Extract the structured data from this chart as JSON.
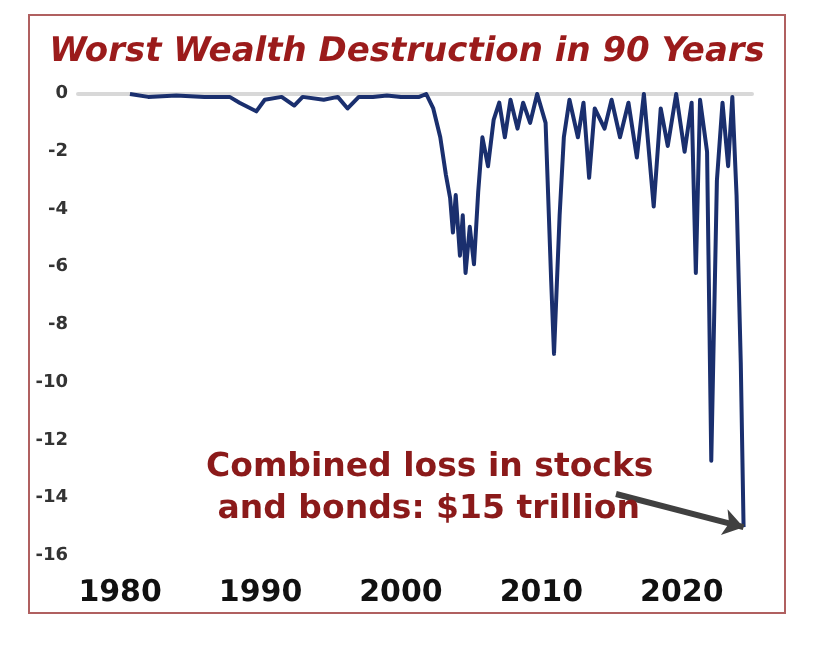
{
  "chart_data": {
    "type": "line",
    "title": "Worst Wealth Destruction in 90 Years",
    "xlim": [
      1977,
      2025
    ],
    "xticks": [
      1980,
      1990,
      2000,
      2010,
      2020
    ],
    "ylim": [
      -16,
      0
    ],
    "yticks": [
      0,
      -2,
      -4,
      -6,
      -8,
      -10,
      -12,
      -14,
      -16
    ],
    "grid": false,
    "marker": "none",
    "line_style": "solid",
    "annotations": [
      {
        "text": "Combined loss in stocks and bonds: $15 trillion",
        "x": 2024.4,
        "y": -15
      }
    ],
    "series": [
      {
        "color": "#1a2f6e",
        "x": [
          1980.7,
          1982,
          1984,
          1986,
          1987.8,
          1988.5,
          1989.7,
          1990.3,
          1991.5,
          1992.4,
          1993,
          1994.5,
          1995.5,
          1996.2,
          1997,
          1998,
          1999,
          2000,
          2001.3,
          2001.8,
          2002.3,
          2002.8,
          2003.2,
          2003.5,
          2003.7,
          2003.9,
          2004.2,
          2004.4,
          2004.6,
          2004.9,
          2005.2,
          2005.5,
          2005.8,
          2006.2,
          2006.6,
          2007,
          2007.4,
          2007.8,
          2008.3,
          2008.7,
          2009.2,
          2009.7,
          2010.3,
          2010.7,
          2010.9,
          2011.3,
          2011.6,
          2012,
          2012.6,
          2013,
          2013.4,
          2013.8,
          2014.5,
          2015,
          2015.6,
          2016.2,
          2016.8,
          2017.3,
          2018,
          2018.5,
          2019,
          2019.6,
          2020.2,
          2020.7,
          2021,
          2021.3,
          2021.8,
          2022.1,
          2022.5,
          2022.9,
          2023.3,
          2023.6,
          2023.9,
          2024.2,
          2024.4
        ],
        "values": [
          0,
          -0.1,
          -0.05,
          -0.1,
          -0.1,
          -0.3,
          -0.6,
          -0.2,
          -0.1,
          -0.4,
          -0.1,
          -0.2,
          -0.1,
          -0.5,
          -0.1,
          -0.1,
          -0.05,
          -0.1,
          -0.1,
          0,
          -0.5,
          -1.5,
          -2.8,
          -3.6,
          -4.8,
          -3.5,
          -5.6,
          -4.2,
          -6.2,
          -4.6,
          -5.9,
          -3.4,
          -1.5,
          -2.5,
          -0.9,
          -0.3,
          -1.5,
          -0.2,
          -1.2,
          -0.3,
          -1,
          0,
          -1,
          -6.5,
          -9,
          -4.2,
          -1.5,
          -0.2,
          -1.5,
          -0.3,
          -2.9,
          -0.5,
          -1.2,
          -0.2,
          -1.5,
          -0.3,
          -2.2,
          0,
          -3.9,
          -0.5,
          -1.8,
          0,
          -2,
          -0.3,
          -6.2,
          -0.2,
          -2,
          -12.7,
          -3,
          -0.3,
          -2.5,
          -0.1,
          -3.5,
          -9.3,
          -15
        ]
      }
    ]
  }
}
